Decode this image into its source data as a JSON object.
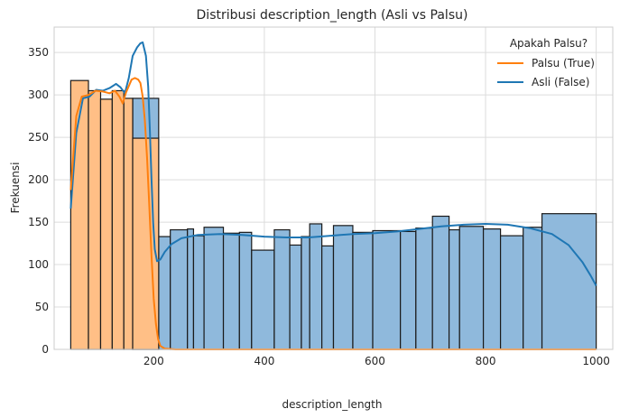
{
  "chart_data": {
    "type": "histogram",
    "title": "Distribusi description_length (Asli vs Palsu)",
    "xlabel": "description_length",
    "ylabel": "Frekuensi",
    "xlim": [
      20,
      1030
    ],
    "ylim": [
      0,
      380
    ],
    "xticks": [
      200,
      400,
      600,
      800,
      1000
    ],
    "yticks": [
      0,
      50,
      100,
      150,
      200,
      250,
      300,
      350
    ],
    "grid": true,
    "legend": {
      "title": "Apakah Palsu?",
      "position": "top-right",
      "entries": [
        {
          "label": "Palsu (True)",
          "color": "#ff7f0e"
        },
        {
          "label": "Asli (False)",
          "color": "#1f77b4"
        }
      ]
    },
    "series": [
      {
        "name": "Asli (False)",
        "color": "#1f77b4",
        "fill": "#8fb9dc",
        "bins": [
          [
            50,
            82,
            0
          ],
          [
            82,
            104,
            0
          ],
          [
            104,
            125,
            0
          ],
          [
            125,
            146,
            0
          ],
          [
            146,
            162,
            0
          ],
          [
            162,
            209,
            296
          ],
          [
            209,
            230,
            133
          ],
          [
            230,
            261,
            141
          ],
          [
            261,
            272,
            142
          ],
          [
            272,
            291,
            134
          ],
          [
            291,
            326,
            144
          ],
          [
            326,
            355,
            137
          ],
          [
            355,
            377,
            138
          ],
          [
            377,
            418,
            117
          ],
          [
            418,
            446,
            141
          ],
          [
            446,
            467,
            123
          ],
          [
            467,
            482,
            133
          ],
          [
            482,
            504,
            148
          ],
          [
            504,
            525,
            122
          ],
          [
            525,
            560,
            146
          ],
          [
            560,
            596,
            138
          ],
          [
            596,
            646,
            140
          ],
          [
            646,
            674,
            139
          ],
          [
            674,
            704,
            143
          ],
          [
            704,
            734,
            157
          ],
          [
            734,
            753,
            141
          ],
          [
            753,
            796,
            145
          ],
          [
            796,
            827,
            142
          ],
          [
            827,
            868,
            134
          ],
          [
            868,
            902,
            144
          ],
          [
            902,
            1000,
            160
          ]
        ],
        "kde": [
          [
            50,
            166
          ],
          [
            60,
            255
          ],
          [
            72,
            296
          ],
          [
            84,
            298
          ],
          [
            96,
            306
          ],
          [
            108,
            305
          ],
          [
            120,
            308
          ],
          [
            132,
            313
          ],
          [
            140,
            309
          ],
          [
            148,
            302
          ],
          [
            155,
            320
          ],
          [
            162,
            346
          ],
          [
            170,
            356
          ],
          [
            176,
            361
          ],
          [
            180,
            362
          ],
          [
            186,
            346
          ],
          [
            190,
            310
          ],
          [
            193,
            260
          ],
          [
            196,
            200
          ],
          [
            199,
            150
          ],
          [
            202,
            118
          ],
          [
            206,
            104
          ],
          [
            212,
            106
          ],
          [
            220,
            115
          ],
          [
            232,
            124
          ],
          [
            250,
            131
          ],
          [
            280,
            135
          ],
          [
            320,
            136
          ],
          [
            360,
            135
          ],
          [
            400,
            133
          ],
          [
            440,
            132
          ],
          [
            480,
            132
          ],
          [
            520,
            134
          ],
          [
            560,
            136
          ],
          [
            600,
            137
          ],
          [
            640,
            139
          ],
          [
            680,
            142
          ],
          [
            720,
            145
          ],
          [
            760,
            147
          ],
          [
            800,
            148
          ],
          [
            840,
            147
          ],
          [
            880,
            143
          ],
          [
            920,
            136
          ],
          [
            950,
            123
          ],
          [
            975,
            103
          ],
          [
            990,
            87
          ],
          [
            1000,
            75
          ]
        ]
      },
      {
        "name": "Palsu (True)",
        "color": "#ff7f0e",
        "fill": "#ffbf86",
        "bins": [
          [
            50,
            82,
            317
          ],
          [
            82,
            104,
            305
          ],
          [
            104,
            125,
            295
          ],
          [
            125,
            146,
            305
          ],
          [
            146,
            162,
            296
          ],
          [
            162,
            209,
            249
          ]
        ],
        "kde": [
          [
            50,
            188
          ],
          [
            60,
            275
          ],
          [
            70,
            298
          ],
          [
            82,
            300
          ],
          [
            95,
            305
          ],
          [
            108,
            304
          ],
          [
            120,
            302
          ],
          [
            130,
            305
          ],
          [
            138,
            298
          ],
          [
            144,
            290
          ],
          [
            150,
            303
          ],
          [
            160,
            318
          ],
          [
            166,
            320
          ],
          [
            172,
            318
          ],
          [
            176,
            314
          ],
          [
            180,
            298
          ],
          [
            184,
            270
          ],
          [
            188,
            225
          ],
          [
            192,
            170
          ],
          [
            196,
            110
          ],
          [
            200,
            60
          ],
          [
            204,
            30
          ],
          [
            208,
            12
          ],
          [
            212,
            4
          ],
          [
            220,
            1
          ],
          [
            240,
            0
          ],
          [
            1000,
            0
          ]
        ]
      }
    ]
  }
}
